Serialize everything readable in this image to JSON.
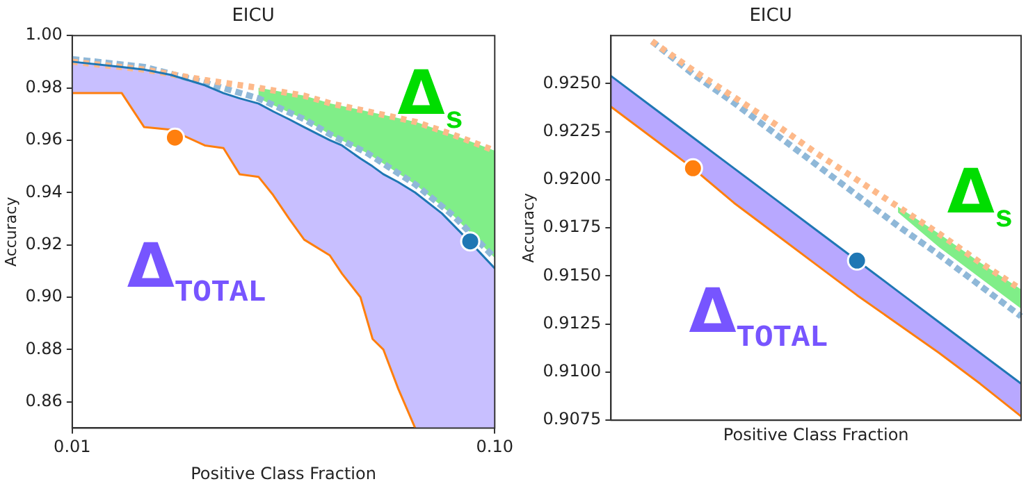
{
  "chart_data": [
    {
      "type": "line",
      "title": "EICU",
      "xlabel": "Positive Class Fraction",
      "ylabel": "Accuracy",
      "log": "x",
      "grid": false,
      "legend": false,
      "marker": "none",
      "xlim": [
        0.01,
        0.1
      ],
      "xticks": [
        {
          "value": 0.01,
          "label": "0.01"
        },
        {
          "value": 0.1,
          "label": "0.10"
        }
      ],
      "ylim": [
        0.85,
        1.0
      ],
      "yticks": [
        {
          "value": 0.86,
          "label": "0.86"
        },
        {
          "value": 0.88,
          "label": "0.88"
        },
        {
          "value": 0.9,
          "label": "0.90"
        },
        {
          "value": 0.92,
          "label": "0.92"
        },
        {
          "value": 0.94,
          "label": "0.94"
        },
        {
          "value": 0.96,
          "label": "0.96"
        },
        {
          "value": 0.98,
          "label": "0.98"
        },
        {
          "value": 1.0,
          "label": "1.00"
        }
      ],
      "annotations": [
        "Δ$_{s}$",
        "Δ$_{TOTAL}$"
      ],
      "series": [
        {
          "type": "line",
          "color": "#8fb8d8",
          "line_style": "dashed",
          "x": [
            0.01,
            0.0148,
            0.0206,
            0.0276,
            0.0354,
            0.041,
            0.05,
            0.065,
            0.08,
            0.1
          ],
          "values": [
            0.991,
            0.988,
            0.982,
            0.976,
            0.968,
            0.962,
            0.955,
            0.943,
            0.931,
            0.915
          ],
          "lower": [
            null,
            null,
            null,
            0.976,
            0.968,
            0.962,
            0.955,
            0.943,
            0.931,
            0.915
          ],
          "upper": [
            null,
            null,
            null,
            0.98,
            0.977,
            0.974,
            0.971,
            0.967,
            0.962,
            0.956
          ]
        },
        {
          "type": "line",
          "color": "#fdb98a",
          "line_style": "dotted",
          "x": [
            0.01,
            0.0148,
            0.0206,
            0.0276,
            0.0354,
            0.041,
            0.05,
            0.065,
            0.08,
            0.1
          ],
          "values": [
            0.99,
            0.987,
            0.983,
            0.98,
            0.977,
            0.974,
            0.971,
            0.967,
            0.962,
            0.956
          ]
        },
        {
          "type": "line",
          "color": "#1f77b4",
          "line_style": "solid",
          "x": [
            0.01,
            0.0131,
            0.0148,
            0.0171,
            0.0206,
            0.0228,
            0.0249,
            0.0276,
            0.0299,
            0.0326,
            0.0354,
            0.0407,
            0.0435,
            0.0481,
            0.0514,
            0.0545,
            0.0591,
            0.0648,
            0.075,
            0.0875,
            0.1
          ],
          "values": [
            0.99,
            0.988,
            0.987,
            0.985,
            0.981,
            0.978,
            0.976,
            0.974,
            0.971,
            0.968,
            0.965,
            0.96,
            0.958,
            0.953,
            0.95,
            0.947,
            0.944,
            0.94,
            0.932,
            0.921,
            0.911
          ],
          "lower": [
            0.978,
            0.978,
            0.965,
            0.964,
            0.958,
            0.957,
            0.947,
            0.946,
            0.939,
            0.93,
            0.922,
            0.916,
            0.909,
            0.9,
            0.884,
            0.88,
            0.865,
            0.85,
            0.85,
            0.85,
            0.85
          ],
          "upper": [
            0.99,
            0.988,
            0.987,
            0.985,
            0.981,
            0.978,
            0.976,
            0.974,
            0.971,
            0.968,
            0.965,
            0.96,
            0.958,
            0.953,
            0.95,
            0.947,
            0.944,
            0.94,
            0.932,
            0.921,
            0.911
          ]
        },
        {
          "type": "line",
          "color": "#ff7f0e",
          "line_style": "solid",
          "x": [
            0.01,
            0.0131,
            0.0148,
            0.0171,
            0.0206,
            0.0228,
            0.0249,
            0.0276,
            0.0299,
            0.0326,
            0.0354,
            0.0407,
            0.0435,
            0.0481,
            0.0514,
            0.0545,
            0.0591,
            0.0648
          ],
          "values": [
            0.978,
            0.978,
            0.965,
            0.964,
            0.958,
            0.957,
            0.947,
            0.946,
            0.939,
            0.93,
            0.922,
            0.916,
            0.909,
            0.9,
            0.884,
            0.88,
            0.865,
            0.85
          ]
        },
        {
          "type": "scatter",
          "color": "#ff7f0e",
          "marker": "circle",
          "x": [
            0.0175
          ],
          "values": [
            0.961
          ]
        },
        {
          "type": "scatter",
          "color": "#1f77b4",
          "marker": "circle",
          "x": [
            0.0875
          ],
          "values": [
            0.9213
          ]
        }
      ]
    },
    {
      "type": "line",
      "title": "EICU",
      "xlabel": "Positive Class Fraction",
      "ylabel": "Accuracy",
      "grid": false,
      "legend": false,
      "marker": "none",
      "tick_labels": "y",
      "categories": [
        null,
        null,
        null,
        null,
        null,
        null,
        null,
        null,
        null,
        null,
        null
      ],
      "ylim": [
        0.9075,
        0.9275
      ],
      "yticks": [
        {
          "value": 0.9075,
          "label": "0.9075"
        },
        {
          "value": 0.91,
          "label": "0.9100"
        },
        {
          "value": 0.9125,
          "label": "0.9125"
        },
        {
          "value": 0.915,
          "label": "0.9150"
        },
        {
          "value": 0.9175,
          "label": "0.9175"
        },
        {
          "value": 0.92,
          "label": "0.9200"
        },
        {
          "value": 0.9225,
          "label": "0.9225"
        },
        {
          "value": 0.925,
          "label": "0.9250"
        }
      ],
      "annotations": [
        "Δ$_{s}$",
        "Δ$_{TOTAL}$"
      ],
      "series": [
        {
          "type": "line",
          "color": "#8fb8d8",
          "line_style": "dashed",
          "values": [
            null,
            0.9272,
            0.9255,
            0.924,
            0.9224,
            0.9208,
            0.9192,
            0.9176,
            0.9161,
            0.9145,
            0.9129
          ],
          "lower": [
            null,
            null,
            null,
            null,
            null,
            null,
            null,
            0.9183,
            0.9165,
            0.9149,
            0.9133
          ],
          "upper": [
            null,
            null,
            null,
            null,
            null,
            null,
            null,
            0.9186,
            0.9172,
            0.9157,
            0.9143
          ]
        },
        {
          "type": "line",
          "color": "#fdb98a",
          "line_style": "dotted",
          "values": [
            null,
            0.9272,
            0.9257,
            0.9243,
            0.9229,
            0.9214,
            0.92,
            0.9186,
            0.9172,
            0.9157,
            0.9143
          ]
        },
        {
          "type": "line",
          "color": "#1f77b4",
          "line_style": "solid",
          "values": [
            0.9254,
            0.9238,
            0.9222,
            0.9206,
            0.919,
            0.9174,
            0.9158,
            0.9142,
            0.9126,
            0.911,
            0.9094
          ],
          "lower": [
            0.9238,
            0.9222,
            0.9206,
            0.9188,
            0.9172,
            0.9156,
            0.914,
            0.9125,
            0.911,
            0.9094,
            0.9077
          ],
          "upper": [
            0.9254,
            0.9238,
            0.9222,
            0.9206,
            0.919,
            0.9174,
            0.9158,
            0.9142,
            0.9126,
            0.911,
            0.9094
          ]
        },
        {
          "type": "line",
          "color": "#ff7f0e",
          "line_style": "solid",
          "values": [
            0.9238,
            0.9222,
            0.9206,
            0.9188,
            0.9172,
            0.9156,
            0.914,
            0.9125,
            0.911,
            0.9094,
            0.9077
          ]
        },
        {
          "type": "scatter",
          "color": "#ff7f0e",
          "marker": "circle",
          "values": [
            null,
            null,
            0.9206,
            null,
            null,
            null,
            null,
            null,
            null,
            null,
            null
          ]
        },
        {
          "type": "scatter",
          "color": "#1f77b4",
          "marker": "circle",
          "values": [
            null,
            null,
            null,
            null,
            null,
            null,
            0.9158,
            null,
            null,
            null,
            null
          ]
        }
      ]
    }
  ]
}
